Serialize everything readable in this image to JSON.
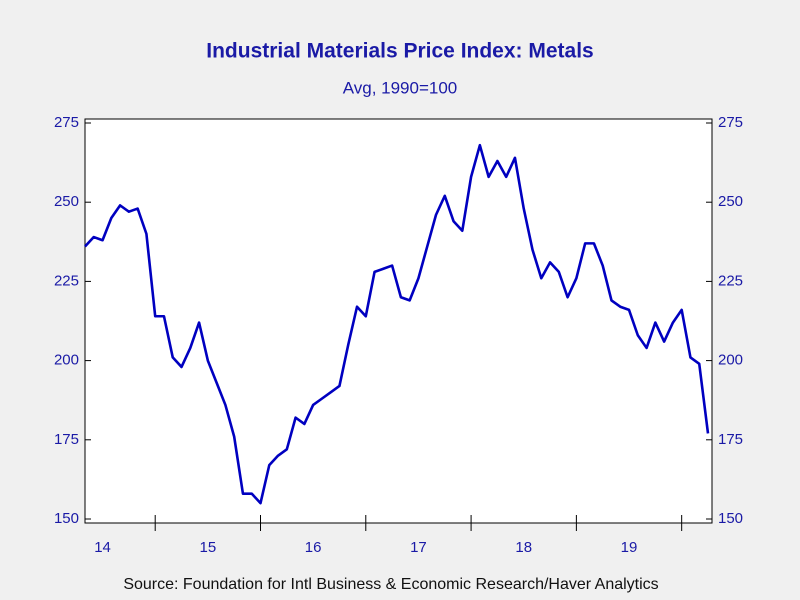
{
  "chart_data": {
    "type": "line",
    "title": "Industrial Materials Price Index: Metals",
    "subtitle": "Avg, 1990=100",
    "source": "Source:  Foundation for Intl Business & Economic Research/Haver Analytics",
    "categories": [
      null,
      null,
      "14",
      null,
      null,
      null,
      null,
      null,
      null,
      null,
      null,
      null,
      null,
      null,
      "15",
      null,
      null,
      null,
      null,
      null,
      null,
      null,
      null,
      null,
      null,
      null,
      "16",
      null,
      null,
      null,
      null,
      null,
      null,
      null,
      null,
      null,
      null,
      null,
      "17",
      null,
      null,
      null,
      null,
      null,
      null,
      null,
      null,
      null,
      null,
      null,
      "18",
      null,
      null,
      null,
      null,
      null,
      null,
      null,
      null,
      null,
      null,
      null,
      "19",
      null,
      null,
      null,
      null,
      null,
      null,
      null,
      null,
      null
    ],
    "series": [
      {
        "name": "Metals",
        "color": "#0000c0",
        "values": [
          236,
          239,
          238,
          245,
          249,
          247,
          248,
          240,
          214,
          214,
          201,
          198,
          204,
          212,
          200,
          193,
          186,
          176,
          158,
          158,
          155,
          167,
          170,
          172,
          182,
          180,
          186,
          188,
          190,
          192,
          205,
          217,
          214,
          228,
          229,
          230,
          220,
          219,
          226,
          236,
          246,
          252,
          244,
          241,
          258,
          268,
          258,
          263,
          258,
          264,
          248,
          235,
          226,
          231,
          228,
          220,
          226,
          237,
          237,
          230,
          219,
          217,
          216,
          208,
          204,
          212,
          206,
          212,
          216,
          201,
          199,
          177
        ]
      }
    ],
    "ylim": [
      150,
      275
    ],
    "yticks": [
      150,
      175,
      200,
      225,
      250,
      275
    ]
  }
}
